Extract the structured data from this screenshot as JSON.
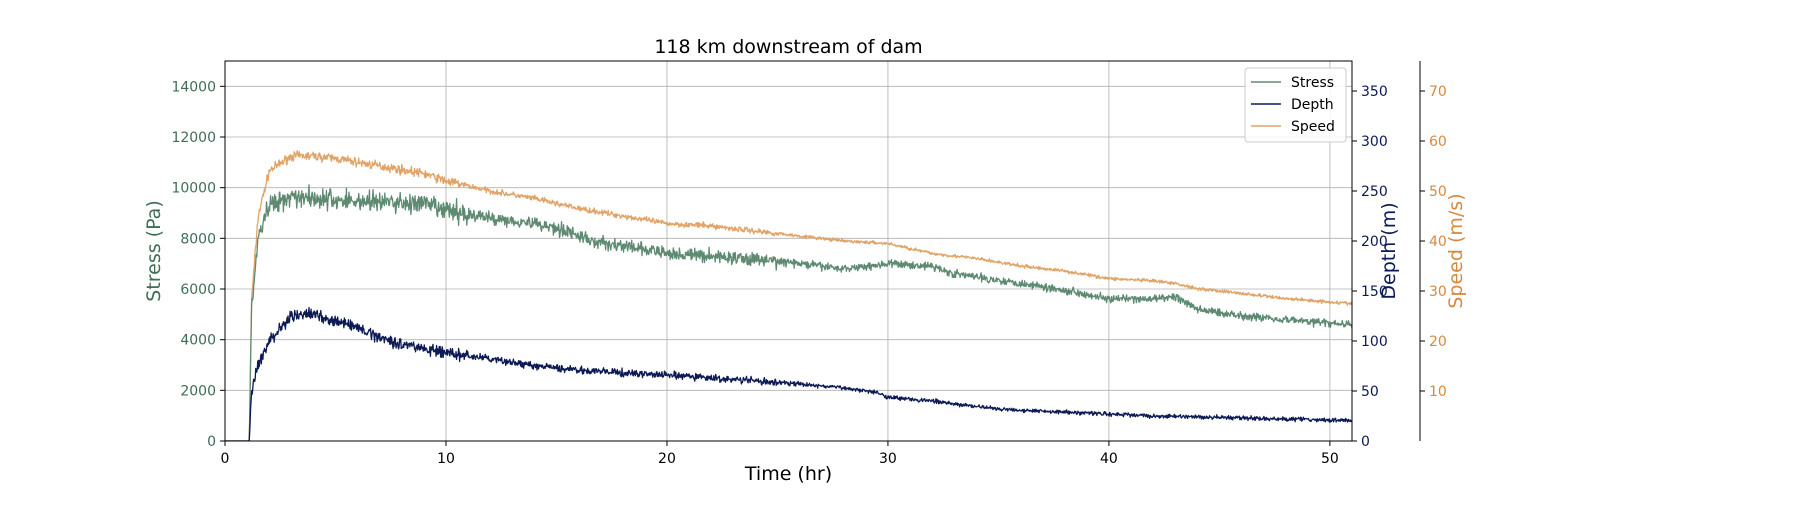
{
  "chart_data": {
    "type": "line",
    "title": "118 km downstream of dam",
    "xlabel": "Time (hr)",
    "xlim": [
      0,
      51
    ],
    "xticks": [
      0,
      10,
      20,
      30,
      40,
      50
    ],
    "grid": true,
    "legend": {
      "placement": "top-right"
    },
    "axes": [
      {
        "id": "stress",
        "label": "Stress (Pa)",
        "side": "left",
        "color": "#3f6e55",
        "ylim": [
          0,
          15000
        ],
        "ticks": [
          0,
          2000,
          4000,
          6000,
          8000,
          10000,
          12000,
          14000
        ]
      },
      {
        "id": "depth",
        "label": "Depth (m)",
        "side": "right",
        "color": "#0c1a55",
        "ylim": [
          0,
          380
        ],
        "ticks": [
          0,
          50,
          100,
          150,
          200,
          250,
          300,
          350
        ]
      },
      {
        "id": "speed",
        "label": "Speed (m/s)",
        "side": "right-outer",
        "color": "#d48a40",
        "ylim": [
          0,
          76
        ],
        "ticks": [
          10,
          20,
          30,
          40,
          50,
          60,
          70
        ]
      }
    ],
    "series": [
      {
        "name": "Stress",
        "axis": "stress",
        "color": "#5e8a72",
        "noise": 260,
        "points": [
          [
            0,
            0
          ],
          [
            1.1,
            0
          ],
          [
            1.2,
            5200
          ],
          [
            1.5,
            8000
          ],
          [
            2,
            9300
          ],
          [
            3,
            9700
          ],
          [
            4,
            9600
          ],
          [
            5,
            9500
          ],
          [
            7,
            9450
          ],
          [
            9,
            9350
          ],
          [
            10,
            9100
          ],
          [
            12,
            8800
          ],
          [
            14,
            8600
          ],
          [
            15.5,
            8300
          ],
          [
            16.5,
            7900
          ],
          [
            18,
            7700
          ],
          [
            20,
            7400
          ],
          [
            22,
            7300
          ],
          [
            25,
            7100
          ],
          [
            28,
            6800
          ],
          [
            30,
            7000
          ],
          [
            32,
            6900
          ],
          [
            33,
            6600
          ],
          [
            35,
            6350
          ],
          [
            37,
            6100
          ],
          [
            39,
            5800
          ],
          [
            40,
            5600
          ],
          [
            42,
            5600
          ],
          [
            43,
            5700
          ],
          [
            44,
            5200
          ],
          [
            46,
            4950
          ],
          [
            48,
            4800
          ],
          [
            50,
            4650
          ],
          [
            51,
            4600
          ]
        ]
      },
      {
        "name": "Depth",
        "axis": "depth",
        "color": "#0c1a55",
        "noise": 3.5,
        "points": [
          [
            0,
            0
          ],
          [
            1.1,
            0
          ],
          [
            1.2,
            50
          ],
          [
            1.5,
            75
          ],
          [
            2,
            100
          ],
          [
            3,
            125
          ],
          [
            4,
            127
          ],
          [
            5,
            120
          ],
          [
            6,
            113
          ],
          [
            7,
            104
          ],
          [
            8,
            97
          ],
          [
            10,
            88
          ],
          [
            12,
            82
          ],
          [
            14,
            75
          ],
          [
            16,
            71
          ],
          [
            18,
            68
          ],
          [
            20,
            66
          ],
          [
            22,
            63
          ],
          [
            24,
            60
          ],
          [
            26,
            57
          ],
          [
            28,
            53
          ],
          [
            29.5,
            49
          ],
          [
            30,
            44
          ],
          [
            32,
            40
          ],
          [
            33,
            37
          ],
          [
            35,
            32
          ],
          [
            38,
            29
          ],
          [
            40,
            27
          ],
          [
            42,
            25
          ],
          [
            44,
            24
          ],
          [
            46,
            23
          ],
          [
            48,
            22
          ],
          [
            50,
            21
          ],
          [
            51,
            20.5
          ]
        ]
      },
      {
        "name": "Speed",
        "axis": "speed",
        "color": "#e0a468",
        "noise": 0.55,
        "points": [
          [
            0,
            0
          ],
          [
            1.1,
            0
          ],
          [
            1.2,
            28
          ],
          [
            1.5,
            45
          ],
          [
            2,
            54
          ],
          [
            3,
            57
          ],
          [
            4,
            57
          ],
          [
            5,
            56.5
          ],
          [
            7,
            55
          ],
          [
            9,
            53.5
          ],
          [
            10,
            52
          ],
          [
            12,
            50
          ],
          [
            14,
            48.5
          ],
          [
            16,
            46.5
          ],
          [
            18,
            45
          ],
          [
            20,
            43.5
          ],
          [
            22,
            43
          ],
          [
            25,
            41.5
          ],
          [
            28,
            40
          ],
          [
            30,
            39.5
          ],
          [
            32,
            37.5
          ],
          [
            34,
            36.5
          ],
          [
            36,
            35
          ],
          [
            38,
            34
          ],
          [
            40,
            32.5
          ],
          [
            42,
            32
          ],
          [
            43,
            31.5
          ],
          [
            44,
            30.5
          ],
          [
            46,
            29.5
          ],
          [
            48,
            28.5
          ],
          [
            50,
            27.8
          ],
          [
            51,
            27.5
          ]
        ]
      }
    ]
  }
}
